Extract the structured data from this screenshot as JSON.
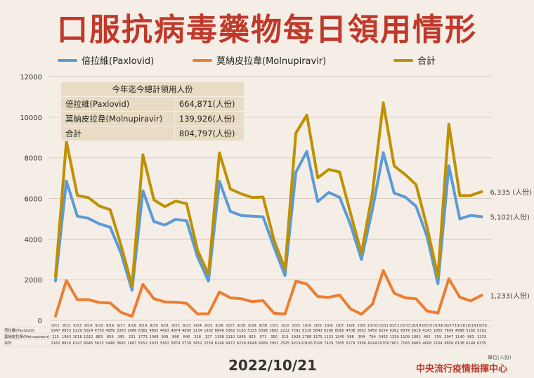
{
  "title": "口服抗病毒藥物每日領用情形",
  "legend": [
    {
      "label": "倍拉維(Paxlovid)",
      "color": "#5b9bd5"
    },
    {
      "label": "莫納皮拉韋(Molnupiravir)",
      "color": "#ed7d31"
    },
    {
      "label": "合計",
      "color": "#bf9000"
    }
  ],
  "summary": {
    "header": "今年迄今總計領用人份",
    "rows": [
      {
        "label": "倍拉維(Paxlovid)",
        "value": "664,871(人份)"
      },
      {
        "label": "莫納皮拉韋(Molnupiravir)",
        "value": "139,926(人份)"
      },
      {
        "label": "合計",
        "value": "804,797(人份)"
      }
    ]
  },
  "end_labels": {
    "total": "6,335 (人份)",
    "paxlovid": "5,102(人份)",
    "molnupiravir": "1,233(人份)"
  },
  "table_row_labels": [
    "倍拉維(Paxlovid)",
    "莫納皮拉韋(Molnupiravir)",
    "合計"
  ],
  "date": "2022/10/21",
  "organization": "中央流行疫情指揮中心",
  "unit_note": "單位(人份)",
  "chart_data": {
    "type": "line",
    "ylim": [
      0,
      12000
    ],
    "yticks": [
      0,
      2000,
      4000,
      6000,
      8000,
      10000,
      12000
    ],
    "categories": [
      "9/11",
      "9/12",
      "9/13",
      "9/14",
      "9/15",
      "9/16",
      "9/17",
      "9/18",
      "9/19",
      "9/20",
      "9/21",
      "9/22",
      "9/23",
      "9/24",
      "9/25",
      "9/26",
      "9/27",
      "9/28",
      "9/29",
      "9/30",
      "10/1",
      "10/2",
      "10/3",
      "10/4",
      "10/5",
      "10/6",
      "10/7",
      "10/8",
      "10/9",
      "10/10",
      "10/11",
      "10/12",
      "10/13",
      "10/14",
      "10/15",
      "10/16",
      "10/17",
      "10/18",
      "10/19",
      "10/20"
    ],
    "series": [
      {
        "name": "倍拉維(Paxlovid)",
        "color": "#5b9bd5",
        "values": [
          1947,
          6853,
          5129,
          5024,
          4750,
          4589,
          3300,
          1486,
          6381,
          4865,
          4693,
          4974,
          4899,
          3134,
          1932,
          6848,
          5362,
          5163,
          5125,
          5098,
          3602,
          2212,
          7291,
          8318,
          5843,
          6296,
          6060,
          4708,
          3002,
          5450,
          8254,
          6262,
          6074,
          5618,
          4143,
          1805,
          7609,
          4998,
          5166,
          5102
        ]
      },
      {
        "name": "莫納皮拉韋(Molnupiravir)",
        "color": "#ed7d31",
        "values": [
          215,
          1963,
          1018,
          1022,
          883,
          859,
          395,
          201,
          1771,
          1068,
          909,
          896,
          840,
          318,
          327,
          1398,
          1110,
          1065,
          923,
          971,
          350,
          313,
          1928,
          1788,
          1175,
          1133,
          1245,
          566,
          304,
          794,
          2455,
          1339,
          1109,
          1062,
          465,
          359,
          2047,
          1140,
          963,
          1233
        ]
      },
      {
        "name": "合計",
        "color": "#bf9000",
        "values": [
          2162,
          8816,
          6147,
          6046,
          5633,
          5448,
          3695,
          1687,
          8152,
          5933,
          5602,
          5874,
          5739,
          3452,
          2259,
          8246,
          6472,
          6228,
          6048,
          6069,
          3952,
          2525,
          9219,
          10106,
          7018,
          7429,
          7305,
          5274,
          3306,
          6244,
          10709,
          7601,
          7183,
          6680,
          4608,
          2164,
          9656,
          6138,
          6149,
          6335
        ]
      }
    ]
  }
}
